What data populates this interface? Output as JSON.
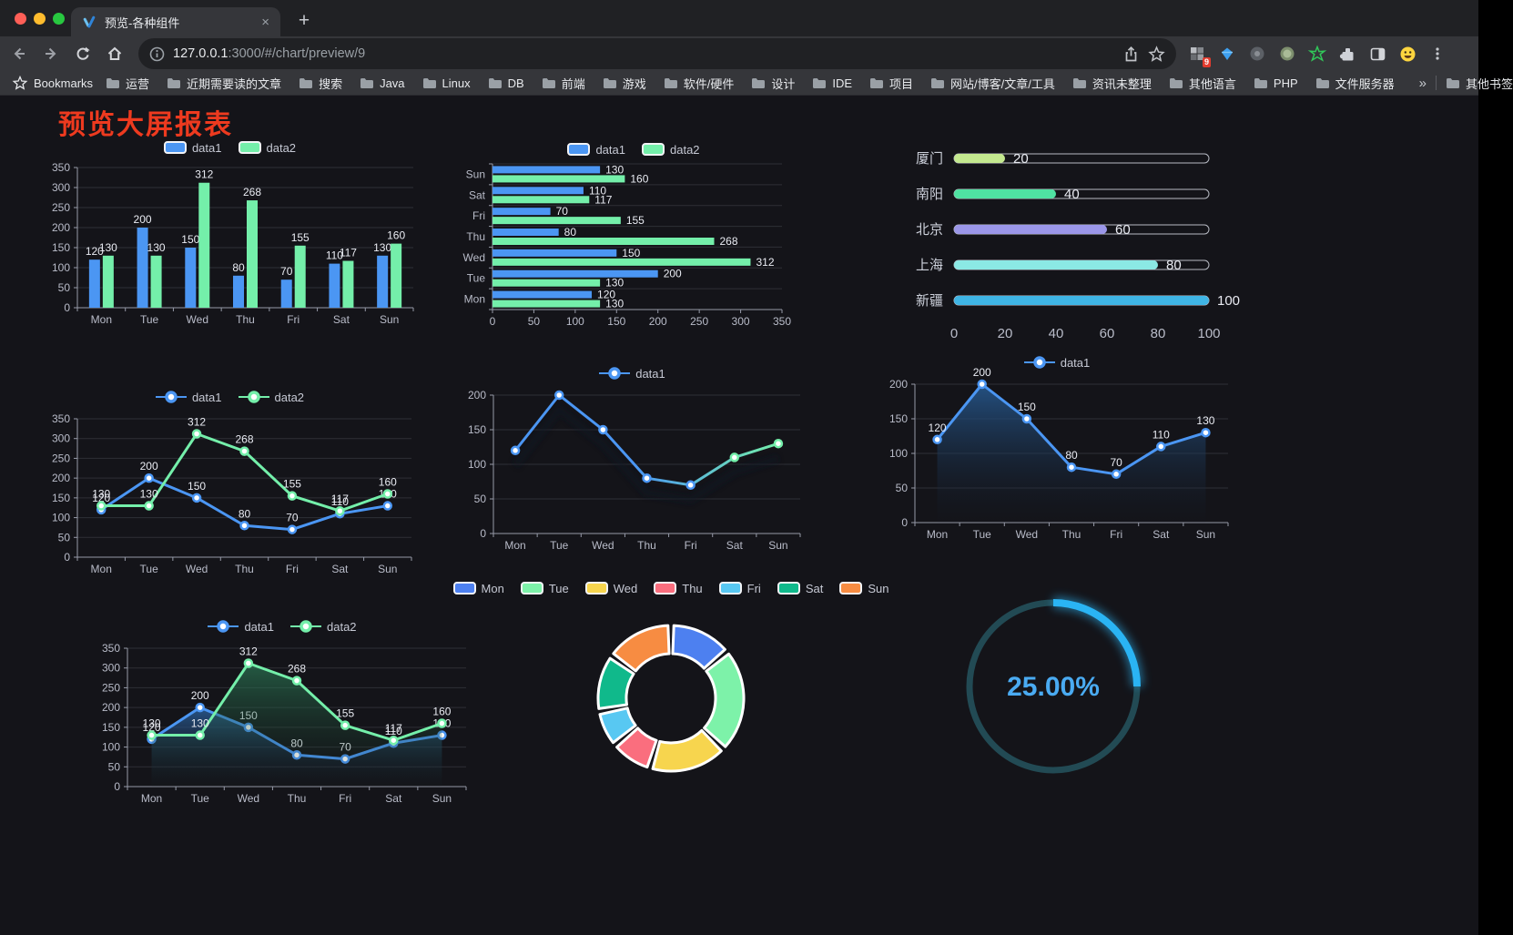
{
  "theme": {
    "traffic_lights": [
      "#ff5f57",
      "#febc2e",
      "#28c840"
    ],
    "grid": "#2e2f36",
    "axis": "#969aa8",
    "tick_label": "#b9bcc9",
    "value_label": "#e9ebf2",
    "page_bg": "#141419",
    "chrome_bg": "#35363a",
    "title_color": "#ee3a1f"
  },
  "browser": {
    "tab_title": "预览-各种组件",
    "url_host": "127.0.0.1",
    "url_rest": ":3000/#/chart/preview/9",
    "bookmarks_label": "Bookmarks",
    "bookmarks": [
      "运营",
      "近期需要读的文章",
      "搜索",
      "Java",
      "Linux",
      "DB",
      "前端",
      "游戏",
      "软件/硬件",
      "设计",
      "IDE",
      "项目",
      "网站/博客/文章/工具",
      "资讯未整理",
      "其他语言",
      "PHP",
      "文件服务器"
    ],
    "bookmarks_overflow": "»",
    "other_bookmarks": "其他书签",
    "extension_badge": "9",
    "icons": {
      "close": "×",
      "plus": "+"
    }
  },
  "page": {
    "title": "预览大屏报表"
  },
  "chart_data": [
    {
      "id": "chart-bar",
      "type": "bar",
      "legend": "rect",
      "categories": [
        "Mon",
        "Tue",
        "Wed",
        "Thu",
        "Fri",
        "Sat",
        "Sun"
      ],
      "series": [
        {
          "name": "data1",
          "color": "#4b96f3",
          "values": [
            120,
            200,
            150,
            80,
            70,
            110,
            130
          ]
        },
        {
          "name": "data2",
          "color": "#74efaa",
          "values": [
            130,
            130,
            312,
            268,
            155,
            117,
            160
          ]
        }
      ],
      "ylim": [
        0,
        350
      ],
      "ytick_step": 50
    },
    {
      "id": "chart-hbar",
      "type": "hbar",
      "legend": "rect",
      "categories": [
        "Mon",
        "Tue",
        "Wed",
        "Thu",
        "Fri",
        "Sat",
        "Sun"
      ],
      "series": [
        {
          "name": "data1",
          "color": "#4b96f3",
          "values": [
            120,
            200,
            150,
            80,
            70,
            110,
            130
          ]
        },
        {
          "name": "data2",
          "color": "#74efaa",
          "values": [
            130,
            130,
            312,
            268,
            155,
            117,
            160
          ]
        }
      ],
      "xlim": [
        0,
        350
      ],
      "xtick_step": 50
    },
    {
      "id": "chart-progress",
      "type": "progress",
      "legend": false,
      "items": [
        {
          "label": "厦门",
          "value": 20,
          "color": "#c4e98f"
        },
        {
          "label": "南阳",
          "value": 40,
          "color": "#4fe2a2"
        },
        {
          "label": "北京",
          "value": 60,
          "color": "#9b97e9"
        },
        {
          "label": "上海",
          "value": 80,
          "color": "#8be9e4"
        },
        {
          "label": "新疆",
          "value": 100,
          "color": "#3fb5e5"
        }
      ],
      "xticks": [
        0,
        20,
        40,
        60,
        80,
        100
      ]
    },
    {
      "id": "chart-line2",
      "type": "line",
      "legend": "line",
      "show_labels": true,
      "categories": [
        "Mon",
        "Tue",
        "Wed",
        "Thu",
        "Fri",
        "Sat",
        "Sun"
      ],
      "series": [
        {
          "name": "data1",
          "color": "#4b96f3",
          "values": [
            120,
            200,
            150,
            80,
            70,
            110,
            130
          ]
        },
        {
          "name": "data2",
          "color": "#74efaa",
          "values": [
            130,
            130,
            312,
            268,
            155,
            117,
            160
          ]
        }
      ],
      "ylim": [
        0,
        350
      ],
      "ytick_step": 50
    },
    {
      "id": "chart-line-gradient",
      "type": "line",
      "legend": "line",
      "show_labels": false,
      "shadow": true,
      "categories": [
        "Mon",
        "Tue",
        "Wed",
        "Thu",
        "Fri",
        "Sat",
        "Sun"
      ],
      "series": [
        {
          "name": "data1",
          "color": "#4b96f3",
          "color_end": "#74efaa",
          "values": [
            120,
            200,
            150,
            80,
            70,
            110,
            130
          ]
        }
      ],
      "ylim": [
        0,
        200
      ],
      "ytick_step": 50
    },
    {
      "id": "chart-area1",
      "type": "line",
      "legend": "line",
      "show_labels": true,
      "categories": [
        "Mon",
        "Tue",
        "Wed",
        "Thu",
        "Fri",
        "Sat",
        "Sun"
      ],
      "series": [
        {
          "name": "data1",
          "color": "#4b96f3",
          "values": [
            120,
            200,
            150,
            80,
            70,
            110,
            130
          ],
          "area": true,
          "area_from": "rgba(38,88,142,0.9)",
          "area_to": "rgba(20,30,45,0.03)"
        }
      ],
      "ylim": [
        0,
        200
      ],
      "ytick_step": 50
    },
    {
      "id": "chart-area2",
      "type": "line",
      "legend": "line",
      "show_labels": true,
      "categories": [
        "Mon",
        "Tue",
        "Wed",
        "Thu",
        "Fri",
        "Sat",
        "Sun"
      ],
      "series": [
        {
          "name": "data1",
          "color": "#4b96f3",
          "values": [
            120,
            200,
            150,
            80,
            70,
            110,
            130
          ],
          "area": true,
          "area_from": "rgba(43,98,160,0.8)",
          "area_to": "rgba(20,30,45,0.03)"
        },
        {
          "name": "data2",
          "color": "#74efaa",
          "values": [
            130,
            130,
            312,
            268,
            155,
            117,
            160
          ],
          "area": true,
          "area_from": "rgba(47,138,96,0.6)",
          "area_to": "rgba(20,40,30,0.03)"
        }
      ],
      "ylim": [
        0,
        350
      ],
      "ytick_step": 50
    },
    {
      "id": "chart-donut",
      "type": "donut",
      "legend": "rect",
      "categories": [
        "Mon",
        "Tue",
        "Wed",
        "Thu",
        "Fri",
        "Sat",
        "Sun"
      ],
      "values": [
        120,
        200,
        150,
        80,
        70,
        110,
        130
      ],
      "colors": [
        "#4d80f0",
        "#7df2a9",
        "#f7d54e",
        "#fa6e7e",
        "#58c8f2",
        "#10b98b",
        "#f78c42"
      ]
    },
    {
      "id": "chart-gauge",
      "type": "gauge",
      "legend": false,
      "value_text": "25.00%",
      "percent": 25,
      "track_color": "#224a54",
      "arc_color": "#2ab4f4",
      "text_color": "#4aabf2"
    }
  ]
}
